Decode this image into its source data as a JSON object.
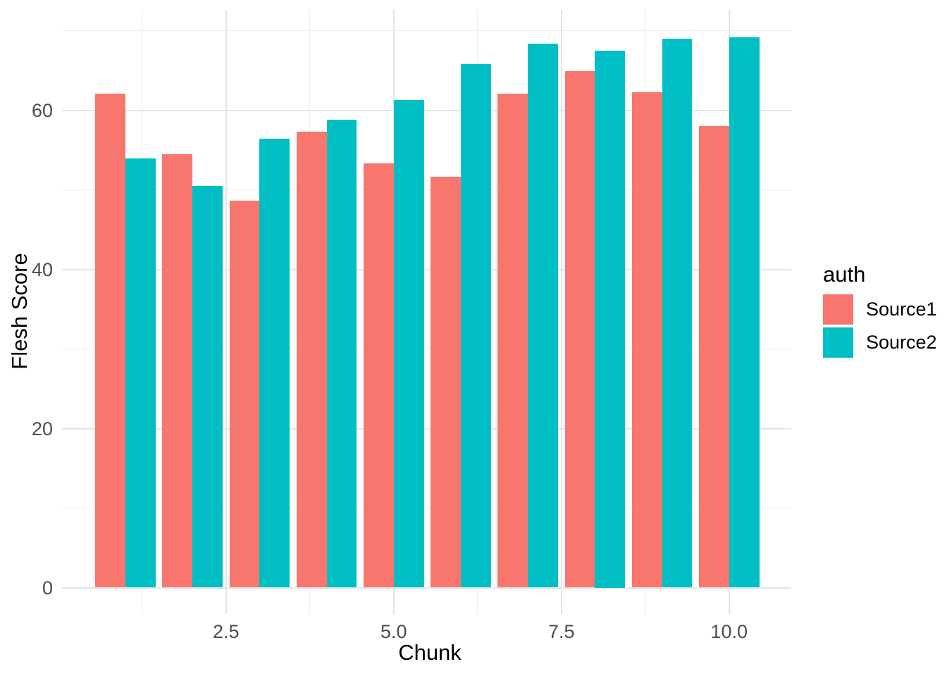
{
  "figure": {
    "background": "#FFFFFF",
    "panel_background": "#FFFFFF",
    "gridline_major_color": "#E4E4E4",
    "gridline_minor_color": "#EDEDED",
    "tick_text_color": "#4D4D4D",
    "title_text_color": "#000000"
  },
  "chart_data": {
    "type": "bar",
    "title": "",
    "xlabel": "Chunk",
    "ylabel": "Flesh Score",
    "x": [
      1,
      2,
      3,
      4,
      5,
      6,
      7,
      8,
      9,
      10
    ],
    "series": [
      {
        "name": "Source1",
        "color": "#F8766D",
        "values": [
          62.1,
          54.5,
          48.6,
          57.3,
          53.3,
          51.6,
          62.1,
          64.9,
          62.3,
          58.0
        ]
      },
      {
        "name": "Source2",
        "color": "#00BFC4",
        "values": [
          53.9,
          50.5,
          56.4,
          58.8,
          61.3,
          65.8,
          68.4,
          67.5,
          69.0,
          69.2
        ]
      }
    ],
    "x_ticks": [
      2.5,
      5.0,
      7.5,
      10.0
    ],
    "x_tick_labels": [
      "2.5",
      "5.0",
      "7.5",
      "10.0"
    ],
    "x_minor_ticks": [
      1.25,
      3.75,
      6.25,
      8.75
    ],
    "y_ticks": [
      0,
      20,
      40,
      60
    ],
    "y_tick_labels": [
      "0",
      "20",
      "40",
      "60"
    ],
    "y_minor_ticks": [
      10,
      30,
      50,
      70
    ],
    "ylim": [
      0,
      72.7
    ],
    "grid": true,
    "legend_position": "right",
    "legend": {
      "title": "auth",
      "entries": [
        "Source1",
        "Source2"
      ]
    }
  }
}
